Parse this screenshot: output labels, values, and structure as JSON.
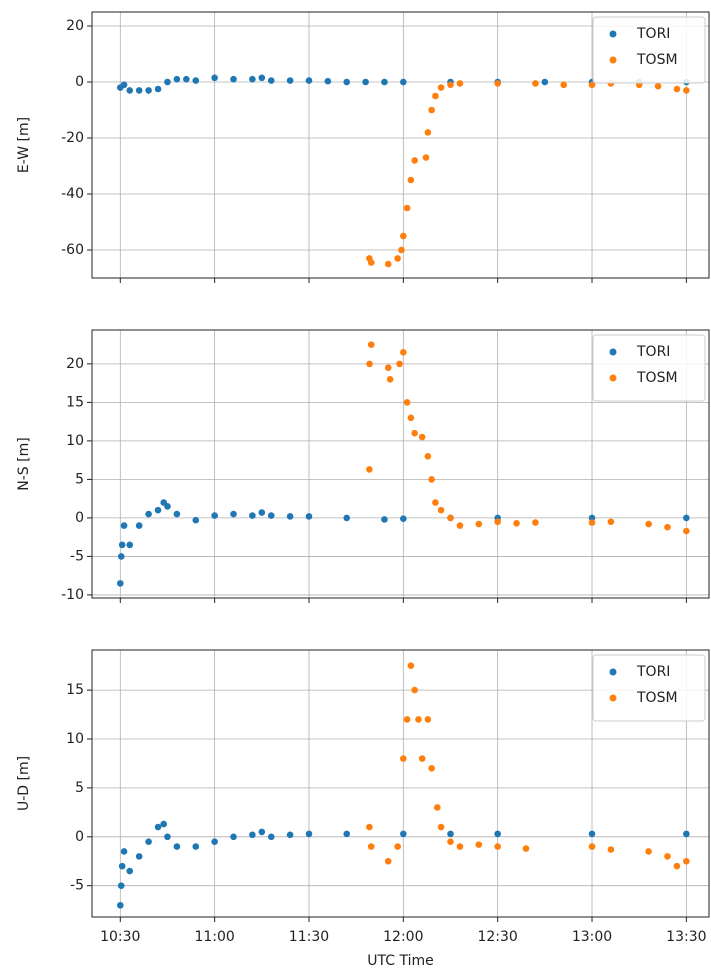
{
  "chart_data": [
    {
      "type": "scatter",
      "ylabel": "E-W [m]",
      "grid": true,
      "legend": "upper right",
      "xlim": [
        10.35,
        13.62
      ],
      "xticks": [
        10.5,
        11,
        11.5,
        12,
        12.5,
        13,
        13.5
      ],
      "ylim": [
        -70,
        25
      ],
      "yticks": [
        20,
        0,
        -20,
        -40,
        -60
      ],
      "series": [
        {
          "name": "TORI",
          "color": "#1f77b4",
          "x": [
            10.5,
            10.52,
            10.55,
            10.6,
            10.65,
            10.7,
            10.75,
            10.8,
            10.85,
            10.9,
            11.0,
            11.1,
            11.2,
            11.25,
            11.3,
            11.4,
            11.5,
            11.6,
            11.7,
            11.8,
            11.9,
            12.0,
            12.25,
            12.5,
            12.75,
            13.0,
            13.25,
            13.5
          ],
          "values": [
            -2,
            -1,
            -3,
            -3,
            -3,
            -2.5,
            0,
            1,
            1,
            0.5,
            1.5,
            1,
            1,
            1.5,
            0.5,
            0.5,
            0.5,
            0.3,
            0,
            0,
            0,
            0,
            0,
            0,
            0,
            0,
            0,
            0
          ]
        },
        {
          "name": "TOSM",
          "color": "#ff7f0e",
          "x": [
            11.82,
            11.83,
            11.92,
            11.97,
            11.99,
            12.0,
            12.02,
            12.04,
            12.06,
            12.12,
            12.13,
            12.15,
            12.17,
            12.2,
            12.25,
            12.3,
            12.5,
            12.7,
            12.85,
            13.0,
            13.1,
            13.25,
            13.35,
            13.45,
            13.5
          ],
          "values": [
            -63,
            -64.5,
            -65,
            -63,
            -60,
            -55,
            -45,
            -35,
            -28,
            -27,
            -18,
            -10,
            -5,
            -2,
            -1,
            -0.5,
            -0.5,
            -0.5,
            -1,
            -1,
            -0.5,
            -1,
            -1.5,
            -2.5,
            -3
          ]
        }
      ]
    },
    {
      "type": "scatter",
      "ylabel": "N-S [m]",
      "grid": true,
      "legend": "upper right",
      "xlim": [
        10.35,
        13.62
      ],
      "xticks": [
        10.5,
        11,
        11.5,
        12,
        12.5,
        13,
        13.5
      ],
      "ylim": [
        -10.4,
        24.4
      ],
      "yticks": [
        20,
        15,
        10,
        5,
        0,
        -5,
        -10
      ],
      "series": [
        {
          "name": "TORI",
          "color": "#1f77b4",
          "x": [
            10.5,
            10.505,
            10.51,
            10.52,
            10.55,
            10.6,
            10.65,
            10.7,
            10.73,
            10.75,
            10.8,
            10.9,
            11.0,
            11.1,
            11.2,
            11.25,
            11.3,
            11.4,
            11.5,
            11.7,
            11.9,
            12.0,
            12.25,
            12.5,
            13.0,
            13.5
          ],
          "values": [
            -8.5,
            -5,
            -3.5,
            -1,
            -3.5,
            -1,
            0.5,
            1,
            2,
            1.5,
            0.5,
            -0.3,
            0.3,
            0.5,
            0.3,
            0.7,
            0.3,
            0.2,
            0.2,
            0,
            -0.2,
            -0.1,
            0,
            0,
            0,
            0
          ]
        },
        {
          "name": "TOSM",
          "color": "#ff7f0e",
          "x": [
            11.82,
            11.821,
            11.83,
            11.92,
            11.93,
            11.98,
            12.0,
            12.02,
            12.04,
            12.06,
            12.1,
            12.13,
            12.15,
            12.17,
            12.2,
            12.25,
            12.3,
            12.4,
            12.5,
            12.6,
            12.7,
            13.0,
            13.1,
            13.3,
            13.4,
            13.5
          ],
          "values": [
            6.3,
            20,
            22.5,
            19.5,
            18,
            20,
            21.5,
            15,
            13,
            11,
            10.5,
            8,
            5,
            2,
            1,
            0,
            -1,
            -0.8,
            -0.5,
            -0.7,
            -0.6,
            -0.6,
            -0.5,
            -0.8,
            -1.2,
            -1.7
          ]
        }
      ]
    },
    {
      "type": "scatter",
      "ylabel": "U-D [m]",
      "xlabel": "UTC Time",
      "grid": true,
      "legend": "upper right",
      "xlim": [
        10.35,
        13.62
      ],
      "xticks": [
        {
          "value": 10.5,
          "label": "10:30"
        },
        {
          "value": 11,
          "label": "11:00"
        },
        {
          "value": 11.5,
          "label": "11:30"
        },
        {
          "value": 12,
          "label": "12:00"
        },
        {
          "value": 12.5,
          "label": "12:30"
        },
        {
          "value": 13,
          "label": "13:00"
        },
        {
          "value": 13.5,
          "label": "13:30"
        }
      ],
      "ylim": [
        -8.2,
        19.1
      ],
      "yticks": [
        15,
        10,
        5,
        0,
        -5
      ],
      "series": [
        {
          "name": "TORI",
          "color": "#1f77b4",
          "x": [
            10.5,
            10.505,
            10.51,
            10.52,
            10.55,
            10.6,
            10.65,
            10.7,
            10.73,
            10.75,
            10.8,
            10.9,
            11.0,
            11.1,
            11.2,
            11.25,
            11.3,
            11.4,
            11.5,
            11.7,
            12.0,
            12.25,
            12.5,
            13.0,
            13.5
          ],
          "values": [
            -7,
            -5,
            -3,
            -1.5,
            -3.5,
            -2,
            -0.5,
            1,
            1.3,
            0,
            -1,
            -1,
            -0.5,
            0,
            0.2,
            0.5,
            0,
            0.2,
            0.3,
            0.3,
            0.3,
            0.3,
            0.3,
            0.3,
            0.3
          ]
        },
        {
          "name": "TOSM",
          "color": "#ff7f0e",
          "x": [
            11.82,
            11.83,
            11.92,
            11.97,
            12.0,
            12.02,
            12.04,
            12.06,
            12.08,
            12.1,
            12.13,
            12.15,
            12.18,
            12.2,
            12.25,
            12.3,
            12.4,
            12.5,
            12.65,
            13.0,
            13.1,
            13.3,
            13.4,
            13.45,
            13.5
          ],
          "values": [
            1,
            -1,
            -2.5,
            -1,
            8,
            12,
            17.5,
            15,
            12,
            8,
            12,
            7,
            3,
            1,
            -0.5,
            -1,
            -0.8,
            -1,
            -1.2,
            -1,
            -1.3,
            -1.5,
            -2,
            -3,
            -2.5
          ]
        }
      ]
    }
  ]
}
